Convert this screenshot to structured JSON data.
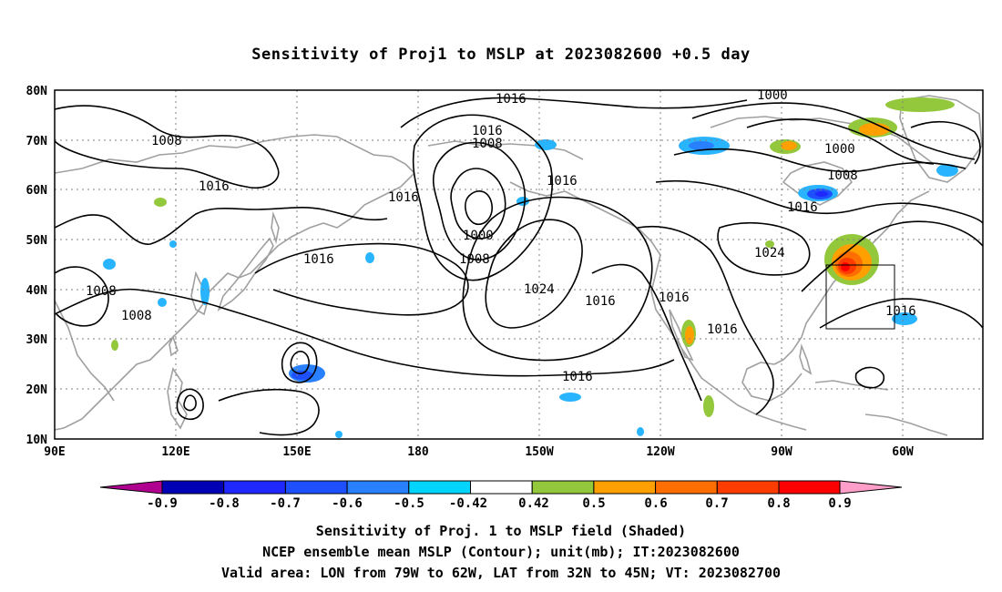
{
  "title": "Sensitivity of Proj1 to MSLP at 2023082600 +0.5 day",
  "map": {
    "lat_labels": [
      "80N",
      "70N",
      "60N",
      "50N",
      "40N",
      "30N",
      "20N",
      "10N"
    ],
    "lon_labels": [
      "90E",
      "120E",
      "150E",
      "180",
      "150W",
      "120W",
      "90W",
      "60W"
    ],
    "contour_labels": [
      {
        "text": "1016"
      },
      {
        "text": "1000"
      },
      {
        "text": "1016"
      },
      {
        "text": "1008"
      },
      {
        "text": "1016"
      },
      {
        "text": "1008"
      },
      {
        "text": "1016"
      },
      {
        "text": "1016"
      },
      {
        "text": "1000"
      },
      {
        "text": "1000"
      },
      {
        "text": "1008"
      },
      {
        "text": "1016"
      },
      {
        "text": "1024"
      },
      {
        "text": "1016"
      },
      {
        "text": "1008"
      },
      {
        "text": "1008"
      },
      {
        "text": "1008"
      },
      {
        "text": "1024"
      },
      {
        "text": "1016"
      },
      {
        "text": "1016"
      },
      {
        "text": "1016"
      },
      {
        "text": "1016"
      },
      {
        "text": "1016"
      }
    ],
    "valid_area": {
      "lon_from": "79W",
      "lon_to": "62W",
      "lat_from": "32N",
      "lat_to": "45N"
    },
    "colors": {
      "contour": "#000000",
      "coast": "#a0a0a0",
      "grid": "#808080"
    }
  },
  "colorbar": {
    "labels": [
      "-0.9",
      "-0.8",
      "-0.7",
      "-0.6",
      "-0.5",
      "-0.42",
      "0.42",
      "0.5",
      "0.6",
      "0.7",
      "0.8",
      "0.9"
    ],
    "colors": [
      "#b00090",
      "#0000b4",
      "#1e28ff",
      "#1e50ff",
      "#2880ff",
      "#28b4ff",
      "#00d4ff",
      "#ffffff",
      "#94c83c",
      "#ffa000",
      "#ff6e00",
      "#ff3c00",
      "#ff0000",
      "#ff9ec8"
    ]
  },
  "captions": [
    "Sensitivity of Proj. 1 to MSLP field (Shaded)",
    "NCEP ensemble mean MSLP (Contour); unit(mb); IT:2023082600",
    "Valid area: LON from 79W to 62W, LAT from 32N to 45N; VT: 2023082700"
  ]
}
